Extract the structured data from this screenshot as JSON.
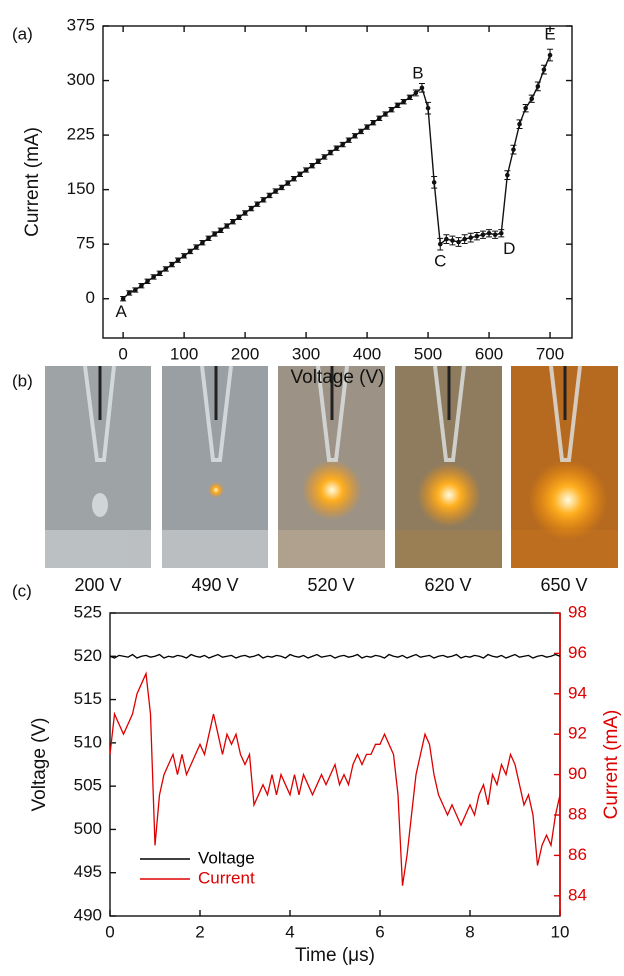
{
  "chart_data": [
    {
      "type": "line",
      "panel_label": "(a)",
      "xlabel": "Voltage (V)",
      "ylabel": "Current (mA)",
      "xlim": [
        -33,
        736
      ],
      "xticks": [
        0,
        100,
        200,
        300,
        400,
        500,
        600,
        700
      ],
      "ylim": [
        -54,
        375
      ],
      "yticks": [
        0,
        75,
        150,
        225,
        300,
        375
      ],
      "color": "#111111",
      "x": [
        0,
        10,
        20,
        30,
        40,
        50,
        60,
        70,
        80,
        90,
        100,
        110,
        120,
        130,
        140,
        150,
        160,
        170,
        180,
        190,
        200,
        210,
        220,
        230,
        240,
        250,
        260,
        270,
        280,
        290,
        300,
        310,
        320,
        330,
        340,
        350,
        360,
        370,
        380,
        390,
        400,
        410,
        420,
        430,
        440,
        450,
        460,
        470,
        480,
        490,
        500,
        510,
        520,
        530,
        540,
        550,
        560,
        570,
        580,
        590,
        600,
        610,
        620,
        630,
        640,
        650,
        660,
        670,
        680,
        690,
        700
      ],
      "values": [
        0,
        8,
        12,
        18,
        24,
        30,
        35,
        41,
        47,
        53,
        59,
        65,
        71,
        77,
        83,
        89,
        94,
        100,
        106,
        112,
        118,
        124,
        130,
        136,
        142,
        148,
        153,
        159,
        165,
        171,
        177,
        183,
        189,
        195,
        201,
        207,
        212,
        218,
        224,
        230,
        236,
        242,
        248,
        254,
        260,
        266,
        271,
        277,
        283,
        290,
        262,
        160,
        75,
        82,
        80,
        78,
        82,
        84,
        86,
        88,
        90,
        88,
        90,
        170,
        205,
        240,
        262,
        275,
        292,
        315,
        335
      ],
      "errors": [
        3,
        3,
        3,
        3,
        3,
        3,
        3,
        3,
        3,
        3,
        3,
        3,
        3,
        3,
        3,
        3,
        3,
        3,
        3,
        3,
        3,
        3,
        3,
        3,
        3,
        3,
        3,
        3,
        3,
        3,
        3,
        3,
        3,
        3,
        3,
        3,
        3,
        3,
        3,
        3,
        3,
        3,
        3,
        3,
        3,
        3,
        3,
        3,
        4,
        6,
        8,
        8,
        8,
        6,
        6,
        6,
        6,
        6,
        5,
        5,
        5,
        5,
        5,
        6,
        6,
        6,
        5,
        5,
        6,
        6,
        8
      ],
      "annotations": [
        "A",
        "B",
        "C",
        "D",
        "E"
      ]
    },
    {
      "type": "line",
      "panel_label": "(c)",
      "xlabel": "Time (μs)",
      "ylabel": "Voltage (V)",
      "y2label": "Current (mA)",
      "xlim": [
        0,
        10
      ],
      "xticks": [
        0,
        2,
        4,
        6,
        8,
        10
      ],
      "ylim": [
        490,
        525
      ],
      "yticks": [
        490,
        495,
        500,
        505,
        510,
        515,
        520,
        525
      ],
      "y2lim": [
        83,
        98
      ],
      "y2ticks": [
        84,
        86,
        88,
        90,
        92,
        94,
        96,
        98
      ],
      "legend": "lower left",
      "x": [
        0,
        0.1,
        0.2,
        0.3,
        0.4,
        0.5,
        0.6,
        0.7,
        0.8,
        0.9,
        1,
        1.1,
        1.2,
        1.3,
        1.4,
        1.5,
        1.6,
        1.7,
        1.8,
        1.9,
        2,
        2.1,
        2.2,
        2.3,
        2.4,
        2.5,
        2.6,
        2.7,
        2.8,
        2.9,
        3,
        3.1,
        3.2,
        3.3,
        3.4,
        3.5,
        3.6,
        3.7,
        3.8,
        3.9,
        4,
        4.1,
        4.2,
        4.3,
        4.4,
        4.5,
        4.6,
        4.7,
        4.8,
        4.9,
        5,
        5.1,
        5.2,
        5.3,
        5.4,
        5.5,
        5.6,
        5.7,
        5.8,
        5.9,
        6,
        6.1,
        6.2,
        6.3,
        6.4,
        6.5,
        6.6,
        6.7,
        6.8,
        6.9,
        7,
        7.1,
        7.2,
        7.3,
        7.4,
        7.5,
        7.6,
        7.7,
        7.8,
        7.9,
        8,
        8.1,
        8.2,
        8.3,
        8.4,
        8.5,
        8.6,
        8.7,
        8.8,
        8.9,
        9,
        9.1,
        9.2,
        9.3,
        9.4,
        9.5,
        9.6,
        9.7,
        9.8,
        9.9,
        10
      ],
      "series": [
        {
          "name": "Voltage",
          "color": "#000000",
          "values": [
            520,
            519.8,
            520.1,
            520,
            519.9,
            520.2,
            519.8,
            520,
            520.1,
            519.9,
            520,
            520.2,
            519.8,
            520,
            519.9,
            520.1,
            520,
            519.8,
            520.2,
            520,
            519.9,
            520.1,
            519.8,
            520,
            520.2,
            519.9,
            520,
            520.1,
            519.8,
            520,
            520.1,
            519.9,
            520,
            520.2,
            519.8,
            520,
            519.9,
            520.1,
            520,
            519.8,
            520.2,
            520,
            519.9,
            520.1,
            519.8,
            520,
            520.2,
            519.9,
            520,
            520.1,
            519.8,
            520,
            520.1,
            519.9,
            520,
            520.2,
            519.8,
            520,
            519.9,
            520.1,
            520,
            519.8,
            520.2,
            520,
            519.9,
            520.1,
            519.8,
            520,
            520.2,
            519.9,
            520,
            520.1,
            519.8,
            520,
            520.1,
            519.9,
            520,
            520.2,
            519.8,
            520,
            519.9,
            520.1,
            520,
            519.8,
            520.2,
            520,
            519.9,
            520.1,
            519.8,
            520,
            520.2,
            519.9,
            520,
            520.1,
            519.8,
            520,
            520.1,
            519.9,
            520,
            520.2,
            520
          ]
        },
        {
          "name": "Current",
          "color": "#dd0000",
          "axis": "y2",
          "values": [
            91,
            93,
            92.5,
            92,
            92.5,
            93,
            94,
            94.5,
            95,
            93,
            86.5,
            89,
            90,
            90.5,
            91,
            90,
            91,
            90,
            90.5,
            91,
            91.5,
            91,
            92,
            93,
            92,
            91,
            92,
            91.5,
            92,
            91,
            90.5,
            91,
            88.5,
            89,
            89.5,
            89,
            90,
            89,
            90,
            89.5,
            89,
            90,
            89,
            90,
            89.5,
            89,
            89.5,
            90,
            89.5,
            90,
            90.5,
            89.5,
            90,
            89.5,
            90.5,
            91,
            90.5,
            91,
            91,
            91.5,
            91.5,
            92,
            91.5,
            91,
            89,
            84.5,
            86,
            88,
            90,
            91,
            92,
            91.5,
            90,
            89,
            88.5,
            88,
            88.5,
            88,
            87.5,
            88,
            88.5,
            88,
            89,
            89.5,
            88.5,
            90,
            89.5,
            90.5,
            90,
            91,
            90.5,
            89.5,
            88.5,
            89,
            88,
            85.5,
            86.5,
            87,
            86.5,
            88,
            89
          ]
        }
      ]
    }
  ],
  "photos": {
    "panel_label": "(b)",
    "captions": [
      "200 V",
      "490 V",
      "520 V",
      "620 V",
      "650 V"
    ]
  }
}
